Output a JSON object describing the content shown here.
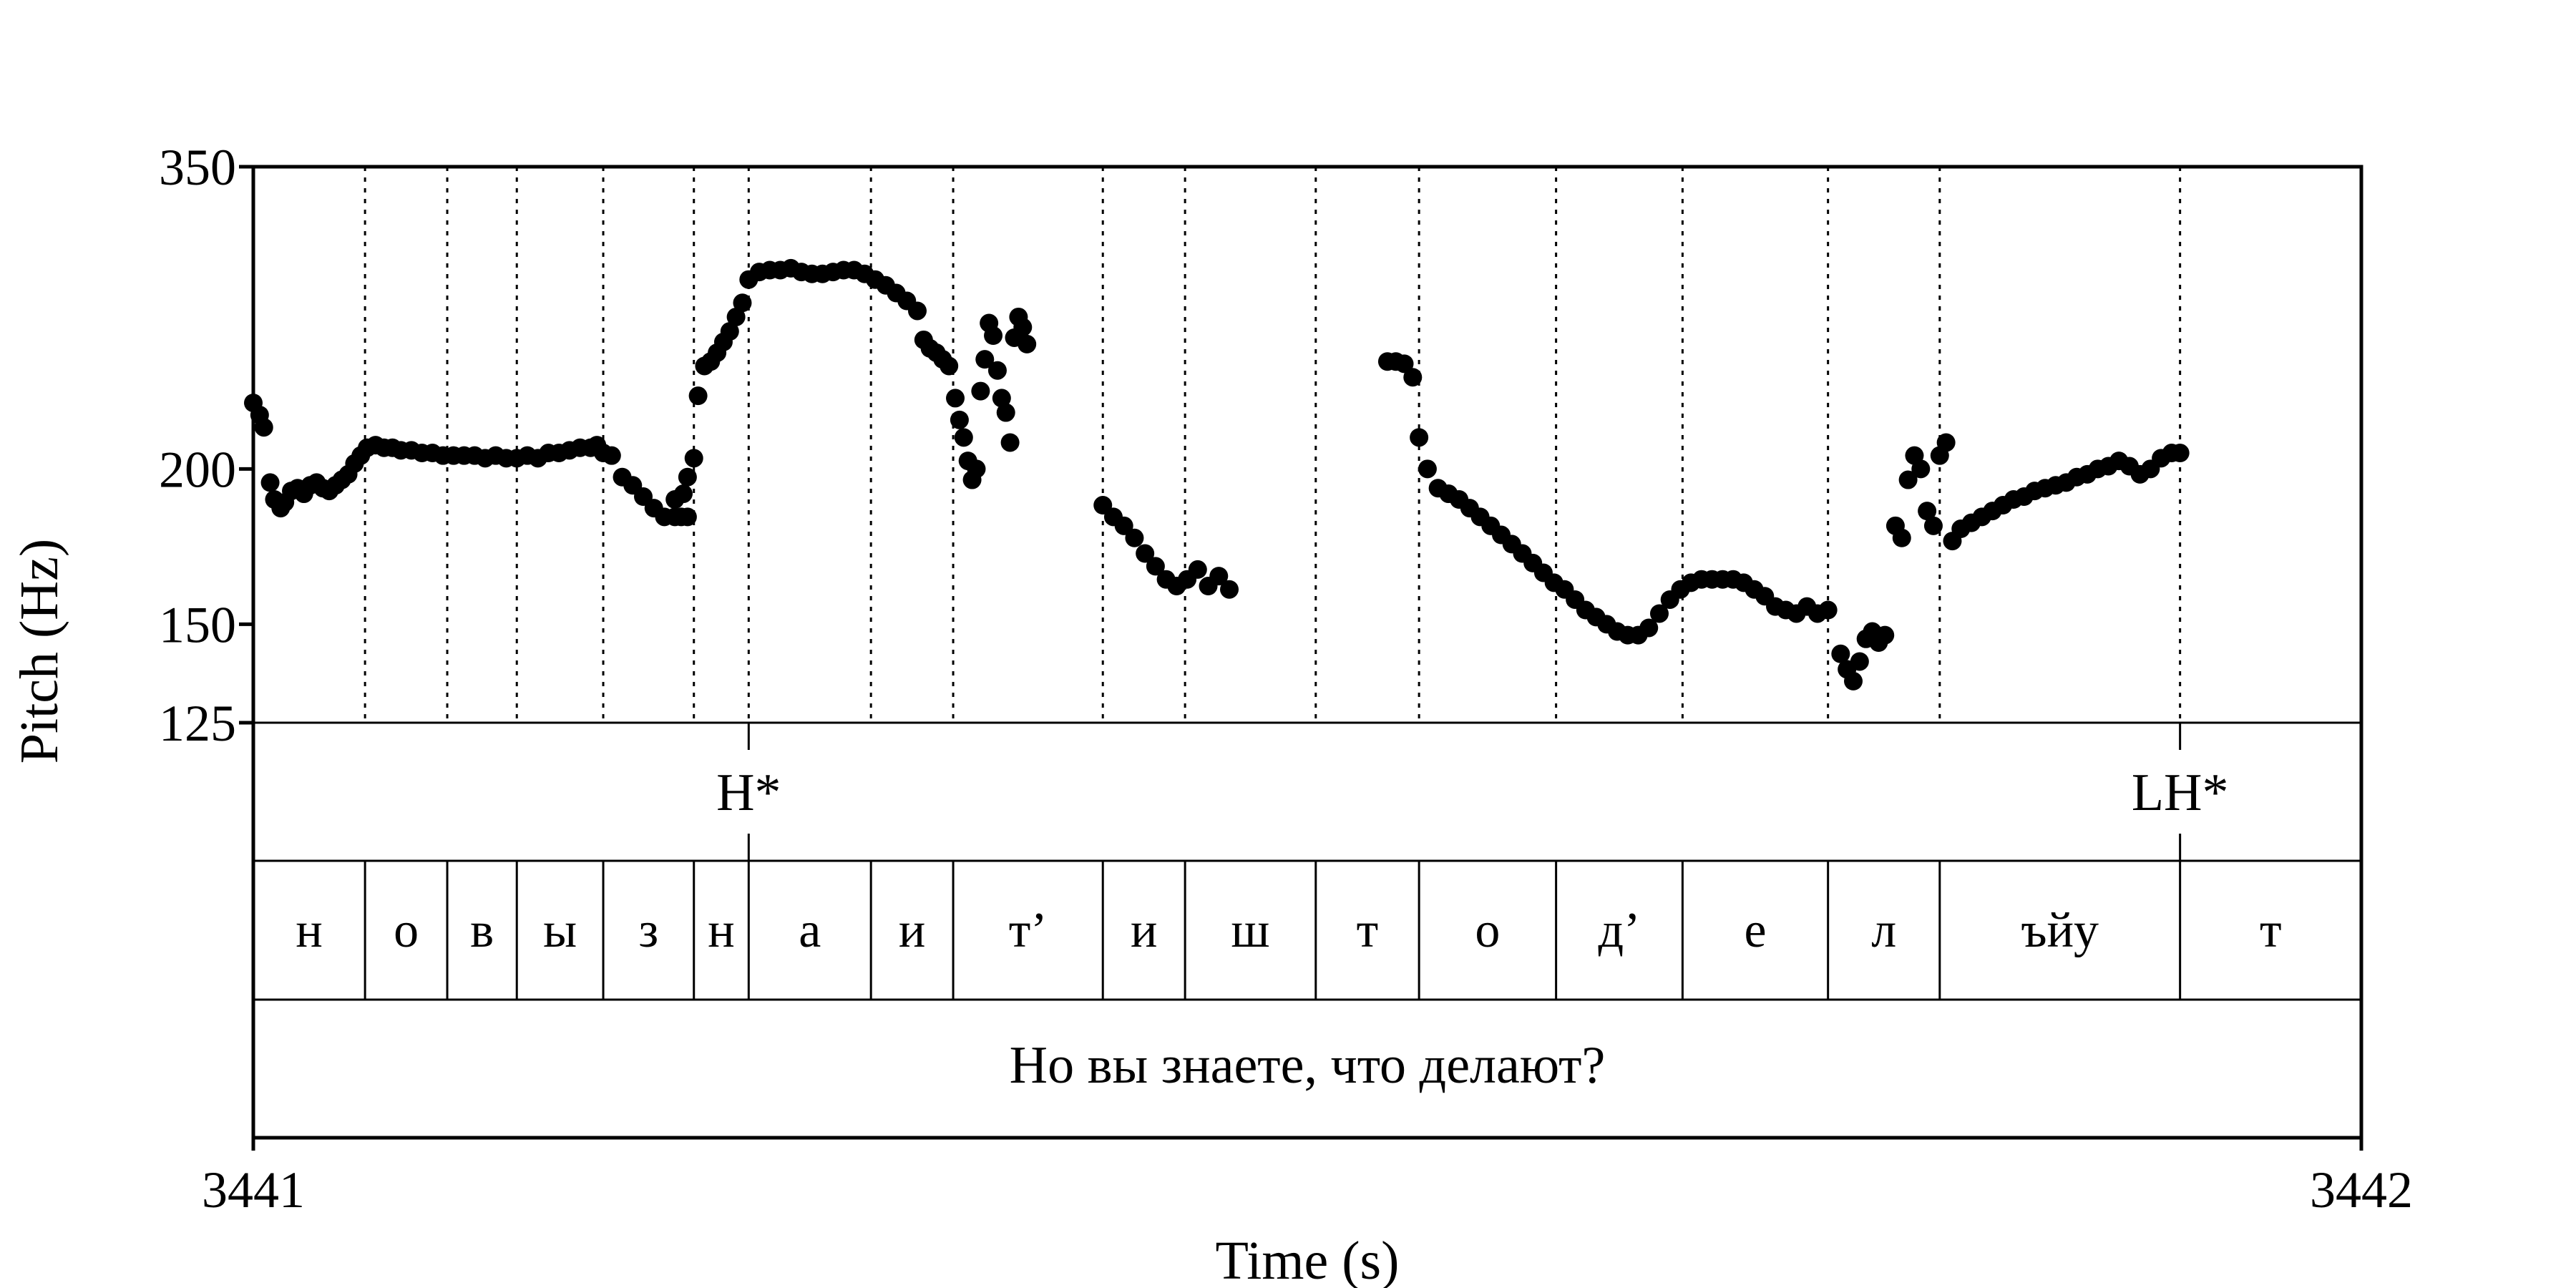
{
  "chart_data": {
    "type": "scatter",
    "xlabel": "Time (s)",
    "ylabel": "Pitch (Hz)",
    "xlim": [
      3441,
      3442
    ],
    "ylim": [
      125,
      350
    ],
    "y_scale": "log",
    "x_ticks": [
      "3441",
      "3442"
    ],
    "y_ticks": [
      {
        "value": 350,
        "label": "350"
      },
      {
        "value": 200,
        "label": "200"
      },
      {
        "value": 150,
        "label": "150"
      },
      {
        "value": 125,
        "label": "125"
      }
    ],
    "grid": false,
    "segment_boundaries": [
      3441.053,
      3441.092,
      3441.125,
      3441.166,
      3441.209,
      3441.235,
      3441.293,
      3441.332,
      3441.403,
      3441.442,
      3441.504,
      3441.553,
      3441.618,
      3441.678,
      3441.747,
      3441.8,
      3441.914
    ],
    "tones": [
      {
        "time": 3441.235,
        "label": "H*"
      },
      {
        "time": 3441.914,
        "label": "LH*"
      }
    ],
    "segments": [
      {
        "start": 3441.0,
        "end": 3441.053,
        "label": "н"
      },
      {
        "start": 3441.053,
        "end": 3441.092,
        "label": "о"
      },
      {
        "start": 3441.092,
        "end": 3441.125,
        "label": "в"
      },
      {
        "start": 3441.125,
        "end": 3441.166,
        "label": "ы"
      },
      {
        "start": 3441.166,
        "end": 3441.209,
        "label": "з"
      },
      {
        "start": 3441.209,
        "end": 3441.235,
        "label": "н"
      },
      {
        "start": 3441.235,
        "end": 3441.293,
        "label": "а"
      },
      {
        "start": 3441.293,
        "end": 3441.332,
        "label": "и"
      },
      {
        "start": 3441.332,
        "end": 3441.403,
        "label": "т’"
      },
      {
        "start": 3441.403,
        "end": 3441.442,
        "label": "и"
      },
      {
        "start": 3441.442,
        "end": 3441.504,
        "label": "ш"
      },
      {
        "start": 3441.504,
        "end": 3441.553,
        "label": "т"
      },
      {
        "start": 3441.553,
        "end": 3441.618,
        "label": "о"
      },
      {
        "start": 3441.618,
        "end": 3441.678,
        "label": "д’"
      },
      {
        "start": 3441.678,
        "end": 3441.747,
        "label": "е"
      },
      {
        "start": 3441.747,
        "end": 3441.8,
        "label": "л"
      },
      {
        "start": 3441.8,
        "end": 3441.914,
        "label": "ъйу"
      },
      {
        "start": 3441.914,
        "end": 3442.0,
        "label": "т"
      }
    ],
    "sentence": "Но вы знаете, что делают?",
    "pitch_segments": [
      {
        "x": [
          3441.0,
          3441.003,
          3441.005,
          3441.008,
          3441.01,
          3441.013,
          3441.015,
          3441.018,
          3441.021,
          3441.024,
          3441.027,
          3441.03,
          3441.033,
          3441.036,
          3441.039,
          3441.042,
          3441.045,
          3441.048,
          3441.051,
          3441.054,
          3441.058,
          3441.062,
          3441.066,
          3441.07,
          3441.075,
          3441.08,
          3441.085,
          3441.09,
          3441.095,
          3441.1,
          3441.105,
          3441.11,
          3441.115,
          3441.12,
          3441.125,
          3441.13,
          3441.135,
          3441.14,
          3441.145,
          3441.15,
          3441.155,
          3441.16,
          3441.163,
          3441.166,
          3441.17,
          3441.175,
          3441.18,
          3441.185,
          3441.19,
          3441.195,
          3441.2,
          3441.203,
          3441.206
        ],
        "y": [
          226,
          221,
          216,
          195,
          189,
          186,
          188,
          192,
          193,
          191,
          194,
          195,
          193,
          192,
          194,
          196,
          198,
          202,
          205,
          208,
          209,
          208,
          208,
          207,
          207,
          206,
          206,
          205,
          205,
          205,
          205,
          204,
          205,
          204,
          204,
          205,
          204,
          206,
          206,
          207,
          208,
          208,
          209,
          206,
          205,
          197,
          194,
          190,
          186,
          183,
          183,
          183,
          183
        ]
      },
      {
        "x": [
          3441.2,
          3441.204,
          3441.206,
          3441.209,
          3441.211,
          3441.214,
          3441.217,
          3441.22,
          3441.223,
          3441.226,
          3441.229,
          3441.232,
          3441.235,
          3441.24,
          3441.245,
          3441.25,
          3441.255,
          3441.26,
          3441.265,
          3441.27,
          3441.275,
          3441.28,
          3441.285,
          3441.29,
          3441.295,
          3441.3,
          3441.305,
          3441.31,
          3441.315,
          3441.318,
          3441.321,
          3441.324,
          3441.327,
          3441.33
        ],
        "y": [
          189,
          191,
          197,
          204,
          229,
          242,
          244,
          248,
          253,
          258,
          265,
          272,
          284,
          288,
          289,
          289,
          290,
          288,
          287,
          287,
          288,
          289,
          289,
          287,
          284,
          281,
          277,
          273,
          268,
          254,
          250,
          248,
          245,
          242
        ]
      },
      {
        "x": [
          3441.333,
          3441.335,
          3441.337,
          3441.339,
          3441.341,
          3441.343,
          3441.345,
          3441.347,
          3441.349,
          3441.351,
          3441.353,
          3441.355,
          3441.357,
          3441.359,
          3441.361,
          3441.363,
          3441.365,
          3441.367
        ],
        "y": [
          228,
          219,
          212,
          203,
          196,
          200,
          231,
          245,
          262,
          256,
          240,
          228,
          222,
          210,
          255,
          265,
          260,
          252
        ]
      },
      {
        "x": [
          3441.403,
          3441.408,
          3441.413,
          3441.418,
          3441.423,
          3441.428,
          3441.433,
          3441.438,
          3441.443,
          3441.448,
          3441.453,
          3441.458,
          3441.463
        ],
        "y": [
          187,
          183,
          180,
          176,
          171,
          167,
          163,
          161,
          163,
          166,
          161,
          164,
          160
        ]
      },
      {
        "x": [
          3441.538,
          3441.542,
          3441.546,
          3441.55,
          3441.553,
          3441.557,
          3441.562,
          3441.567,
          3441.572,
          3441.577,
          3441.582,
          3441.587,
          3441.592,
          3441.597,
          3441.602,
          3441.607,
          3441.612,
          3441.617,
          3441.622,
          3441.627,
          3441.632,
          3441.637,
          3441.642,
          3441.647,
          3441.652,
          3441.657,
          3441.662,
          3441.667,
          3441.672,
          3441.677,
          3441.682,
          3441.687,
          3441.692,
          3441.697,
          3441.702,
          3441.707,
          3441.712,
          3441.717,
          3441.722,
          3441.727,
          3441.732,
          3441.737,
          3441.742,
          3441.747
        ],
        "y": [
          244,
          244,
          243,
          237,
          212,
          200,
          193,
          191,
          189,
          186,
          183,
          180,
          177,
          174,
          171,
          168,
          165,
          162,
          160,
          157,
          154,
          152,
          150,
          148,
          147,
          147,
          149,
          153,
          157,
          160,
          162,
          163,
          163,
          163,
          163,
          162,
          160,
          158,
          155,
          154,
          153,
          155,
          153,
          154
        ]
      },
      {
        "x": [
          3441.753,
          3441.756,
          3441.759,
          3441.762,
          3441.765,
          3441.768,
          3441.771,
          3441.774
        ],
        "y": [
          142,
          138,
          135,
          140,
          146,
          148,
          145,
          147
        ]
      },
      {
        "x": [
          3441.779,
          3441.782,
          3441.785,
          3441.788,
          3441.791,
          3441.794,
          3441.797,
          3441.8,
          3441.803,
          3441.806,
          3441.81,
          3441.815,
          3441.82,
          3441.825,
          3441.83,
          3441.835,
          3441.84,
          3441.845,
          3441.85,
          3441.855,
          3441.86,
          3441.865,
          3441.87,
          3441.875,
          3441.88,
          3441.885,
          3441.89,
          3441.895,
          3441.9,
          3441.905,
          3441.91,
          3441.914
        ],
        "y": [
          180,
          176,
          196,
          205,
          200,
          185,
          180,
          205,
          210,
          175,
          179,
          181,
          183,
          185,
          187,
          189,
          190,
          192,
          193,
          194,
          195,
          197,
          198,
          200,
          201,
          203,
          201,
          198,
          200,
          204,
          206,
          206
        ]
      }
    ]
  }
}
